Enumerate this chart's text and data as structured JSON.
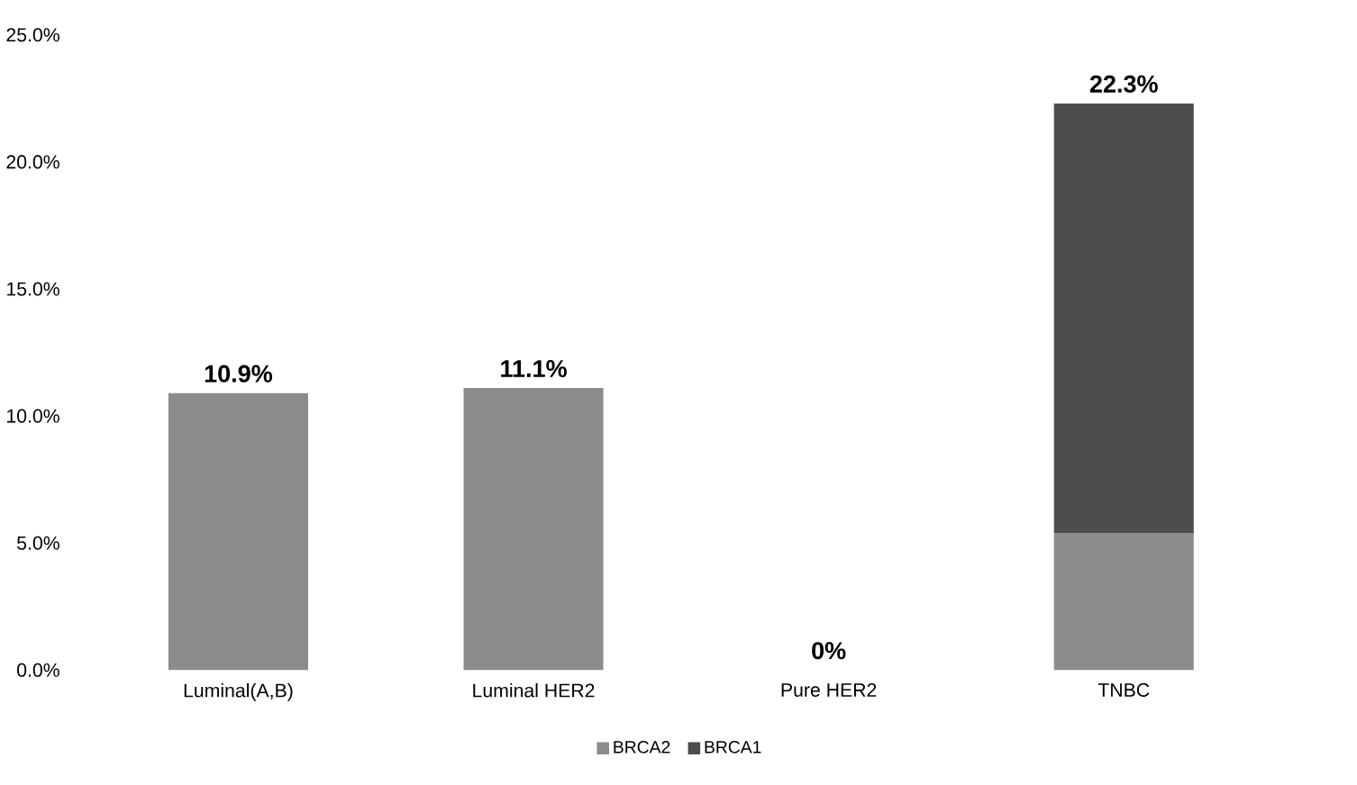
{
  "chart_data": {
    "type": "bar",
    "stacked": true,
    "categories": [
      "Luminal(A,B)",
      "Luminal HER2",
      "Pure HER2",
      "TNBC"
    ],
    "series": [
      {
        "name": "BRCA2",
        "color": "#8c8c8c",
        "values": [
          10.9,
          11.1,
          0,
          5.4
        ]
      },
      {
        "name": "BRCA1",
        "color": "#4d4d4d",
        "values": [
          0,
          0,
          0,
          16.9
        ]
      }
    ],
    "totals": [
      "10.9%",
      "11.1%",
      "0%",
      "22.3%"
    ],
    "ylim": [
      0,
      25
    ],
    "yticks": [
      {
        "value": 0,
        "label": "0.0%"
      },
      {
        "value": 5,
        "label": "5.0%"
      },
      {
        "value": 10,
        "label": "10.0%"
      },
      {
        "value": 15,
        "label": "15.0%"
      },
      {
        "value": 20,
        "label": "20.0%"
      },
      {
        "value": 25,
        "label": "25.0%"
      }
    ],
    "grid": false,
    "legend": "bottom"
  }
}
